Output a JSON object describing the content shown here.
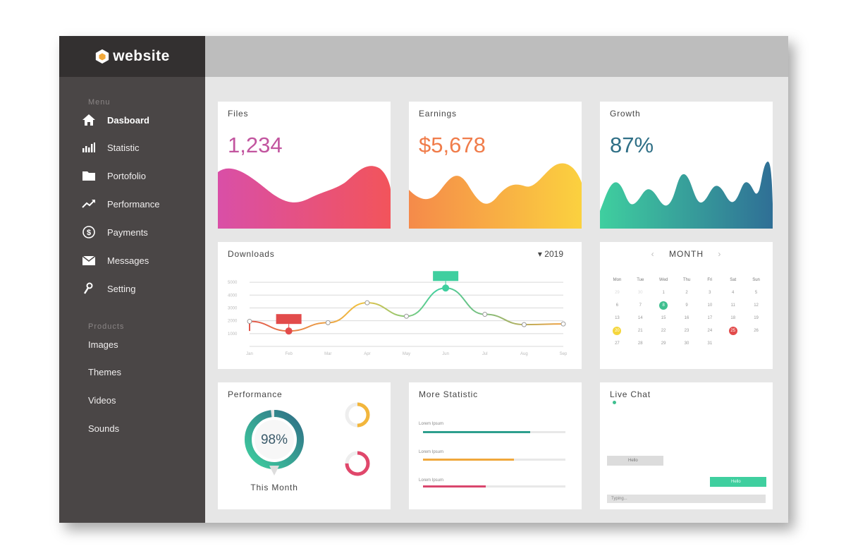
{
  "brand": {
    "name": "website"
  },
  "sidebar": {
    "menu_label": "Menu",
    "items": [
      {
        "label": "Dasboard",
        "icon": "home-icon",
        "active": true
      },
      {
        "label": "Statistic",
        "icon": "bar-chart-icon"
      },
      {
        "label": "Portofolio",
        "icon": "folder-icon"
      },
      {
        "label": "Performance",
        "icon": "trend-up-icon"
      },
      {
        "label": "Payments",
        "icon": "dollar-icon"
      },
      {
        "label": "Messages",
        "icon": "mail-icon"
      },
      {
        "label": "Setting",
        "icon": "wrench-icon"
      }
    ],
    "products_label": "Products",
    "products": [
      {
        "label": "Images"
      },
      {
        "label": "Themes"
      },
      {
        "label": "Videos"
      },
      {
        "label": "Sounds"
      }
    ]
  },
  "cards": {
    "files": {
      "title": "Files",
      "value": "1,234",
      "color": "#c2559f"
    },
    "earnings": {
      "title": "Earnings",
      "value": "$5,678",
      "color": "#f07c4a"
    },
    "growth": {
      "title": "Growth",
      "value": "87%",
      "color": "#2f6f86"
    }
  },
  "downloads": {
    "title": "Downloads",
    "year": "2019",
    "chart_data": {
      "type": "line",
      "title": "Downloads",
      "x": [
        "Jan",
        "Feb",
        "Mar",
        "Apr",
        "May",
        "Jun",
        "Jul",
        "Aug",
        "Sep"
      ],
      "y_ticks": [
        "1000",
        "2000",
        "3000",
        "4000",
        "5000"
      ],
      "series": [
        {
          "values": [
            1950,
            1200,
            1850,
            3400,
            2350,
            4550,
            2500,
            1700,
            1750
          ]
        }
      ],
      "ylim": [
        0,
        5500
      ],
      "grid": true,
      "highlights": [
        {
          "index": 1,
          "color": "#e24b4b"
        },
        {
          "index": 5,
          "color": "#3fcf9f"
        }
      ]
    }
  },
  "calendar": {
    "month": "MONTH",
    "days_of_week": [
      "Mon",
      "Tue",
      "Wed",
      "Thu",
      "Fri",
      "Sat",
      "Sun"
    ],
    "leading": [
      "29",
      "30"
    ],
    "days": [
      "1",
      "2",
      "3",
      "4",
      "5",
      "6",
      "7",
      "8",
      "9",
      "10",
      "11",
      "12",
      "13",
      "14",
      "15",
      "16",
      "17",
      "18",
      "19",
      "20",
      "21",
      "22",
      "23",
      "24",
      "25",
      "26",
      "27",
      "28",
      "29",
      "30",
      "31"
    ],
    "marked": {
      "8": "green",
      "20": "yellow",
      "25": "red"
    }
  },
  "performance": {
    "title": "Performance",
    "main_value": "98%",
    "main_percent": 98,
    "main_label": "This Month",
    "small": [
      {
        "percent": 50,
        "color": "#f2b63c"
      },
      {
        "percent": 75,
        "color": "#e0476b"
      }
    ]
  },
  "more_statistic": {
    "title": "More Statistic",
    "rows": [
      {
        "label": "Lorem Ipsum",
        "percent": 75,
        "color": "#2e9f8e"
      },
      {
        "label": "Lorem Ipsum",
        "percent": 64,
        "color": "#f0a83c"
      },
      {
        "label": "Lorem Ipsum",
        "percent": 44,
        "color": "#d9466d"
      }
    ]
  },
  "live_chat": {
    "title": "Live Chat",
    "incoming": "Hello",
    "outgoing": "Hello",
    "typing_placeholder": "Typing..."
  }
}
